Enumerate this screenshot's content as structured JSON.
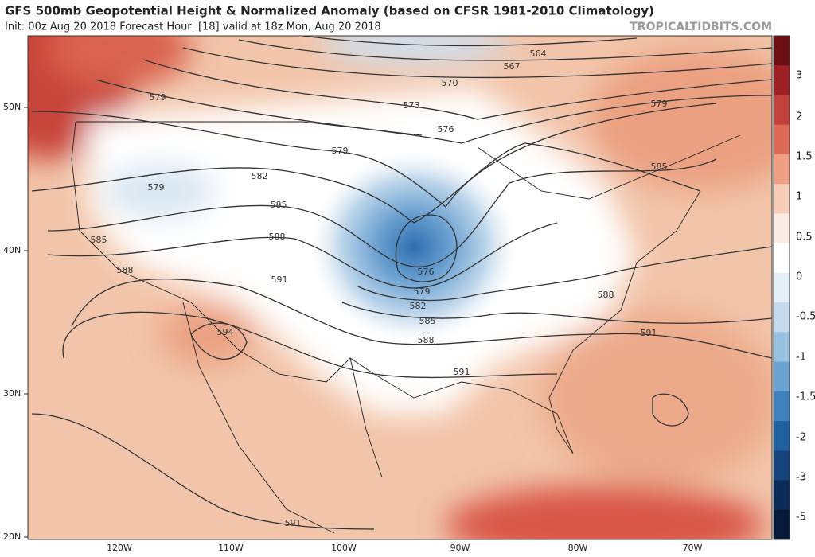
{
  "header": {
    "title": "GFS 500mb Geopotential Height & Normalized Anomaly (based on CFSR 1981-2010 Climatology)",
    "subtitle": "Init: 00z Aug 20 2018   Forecast Hour: [18]   valid at 18z Mon, Aug 20 2018",
    "site": "TROPICALTIDBITS.COM"
  },
  "lat_labels": [
    "50N",
    "40N",
    "30N",
    "20N"
  ],
  "lon_labels": [
    "120W",
    "110W",
    "100W",
    "90W",
    "80W",
    "70W"
  ],
  "colorbar": {
    "labels": [
      "3",
      "2",
      "1.5",
      "1",
      "0.5",
      "0",
      "-0.5",
      "-1",
      "-1.5",
      "-2",
      "-3",
      "-5"
    ]
  },
  "contour_labels": [
    "564",
    "567",
    "570",
    "573",
    "576",
    "579",
    "579",
    "579",
    "582",
    "579",
    "585",
    "585",
    "585",
    "588",
    "588",
    "591",
    "576",
    "579",
    "582",
    "585",
    "588",
    "591",
    "588",
    "591",
    "594",
    "591"
  ]
}
